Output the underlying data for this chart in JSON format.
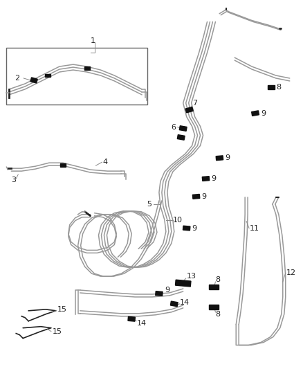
{
  "bg_color": "#ffffff",
  "line_color": "#999999",
  "dark_color": "#222222",
  "clip_color": "#111111",
  "figsize": [
    4.38,
    5.33
  ],
  "dpi": 100
}
